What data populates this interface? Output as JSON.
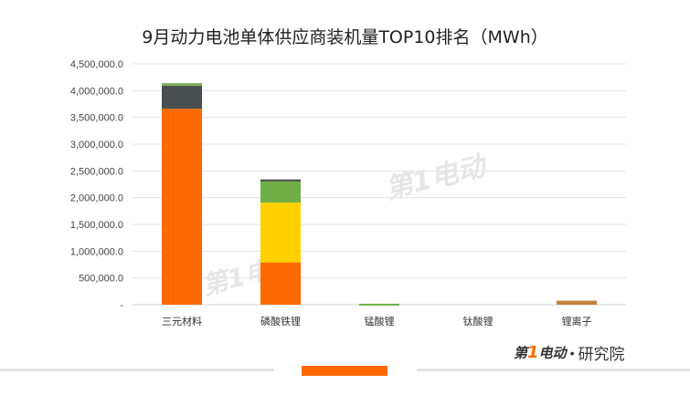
{
  "chart_data": {
    "type": "bar",
    "stacked": true,
    "title": "9月动力电池单体供应商装机量TOP10排名（MWh）",
    "categories": [
      "三元材料",
      "磷酸铁锂",
      "锰酸锂",
      "钛酸锂",
      "锂离子"
    ],
    "y_ticks": [
      "-",
      "500,000.0",
      "1,000,000.0",
      "1,500,000.0",
      "2,000,000.0",
      "2,500,000.0",
      "3,000,000.0",
      "3,500,000.0",
      "4,000,000.0",
      "4,500,000.0"
    ],
    "ylim": [
      0,
      4500000
    ],
    "grid": true,
    "legend": "none",
    "series": [
      {
        "color": "#ff6a00",
        "values": [
          3660000,
          790000,
          0,
          0,
          0
        ]
      },
      {
        "color": "#ffd100",
        "values": [
          0,
          1120000,
          0,
          0,
          0
        ]
      },
      {
        "color": "#70ad47",
        "values": [
          0,
          400000,
          18000,
          0,
          0
        ]
      },
      {
        "color": "#484d4f",
        "values": [
          430000,
          30000,
          0,
          0,
          0
        ]
      },
      {
        "color": "#7fb25a",
        "values": [
          50000,
          0,
          0,
          0,
          0
        ]
      },
      {
        "color": "#c0843b",
        "values": [
          0,
          0,
          0,
          0,
          75000
        ]
      }
    ]
  },
  "branding": {
    "logo_prefix": "第",
    "logo_one": "1",
    "logo_suffix": "电动",
    "separator": "•",
    "suffix_text": "研究院"
  },
  "watermark": {
    "text": "第1电动"
  }
}
